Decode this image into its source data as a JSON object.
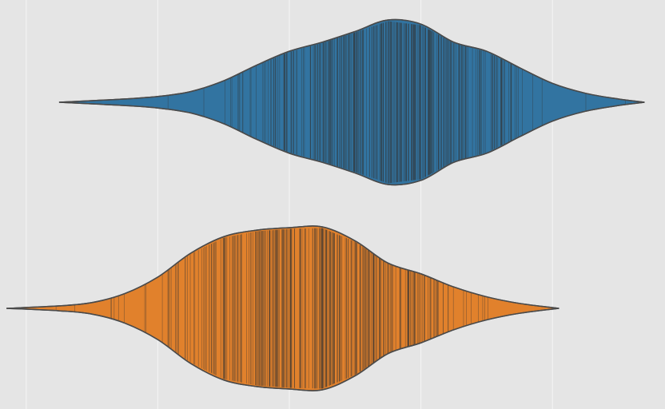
{
  "chart_data": {
    "type": "violin",
    "orientation": "horizontal",
    "title": "",
    "xlabel": "",
    "ylabel": "",
    "grid": true,
    "xlim": [
      -4.2,
      4.65
    ],
    "x_gridlines": [
      -4,
      -2,
      0,
      2,
      4
    ],
    "series": [
      {
        "color": "#3274a1",
        "range": [
          -3.5,
          5.4
        ],
        "median": 1.6,
        "kde": [
          [
            -3.5,
            0.0
          ],
          [
            -3.0,
            0.02
          ],
          [
            -2.5,
            0.04
          ],
          [
            -2.0,
            0.07
          ],
          [
            -1.5,
            0.13
          ],
          [
            -1.0,
            0.26
          ],
          [
            -0.5,
            0.45
          ],
          [
            0.0,
            0.62
          ],
          [
            0.5,
            0.73
          ],
          [
            1.0,
            0.86
          ],
          [
            1.5,
            1.0
          ],
          [
            2.0,
            0.95
          ],
          [
            2.5,
            0.73
          ],
          [
            3.0,
            0.62
          ],
          [
            3.5,
            0.42
          ],
          [
            4.0,
            0.23
          ],
          [
            4.5,
            0.11
          ],
          [
            5.0,
            0.04
          ],
          [
            5.4,
            0.0
          ]
        ],
        "observations": {
          "count": 300,
          "mean": 1.5,
          "sd": 1.3
        }
      },
      {
        "color": "#e1812c",
        "range": [
          -4.3,
          4.1
        ],
        "median": 0.4,
        "kde": [
          [
            -4.3,
            0.0
          ],
          [
            -3.5,
            0.03
          ],
          [
            -3.0,
            0.07
          ],
          [
            -2.5,
            0.18
          ],
          [
            -2.0,
            0.38
          ],
          [
            -1.5,
            0.67
          ],
          [
            -1.0,
            0.87
          ],
          [
            -0.5,
            0.95
          ],
          [
            0.0,
            0.98
          ],
          [
            0.5,
            0.99
          ],
          [
            1.0,
            0.82
          ],
          [
            1.5,
            0.55
          ],
          [
            2.0,
            0.42
          ],
          [
            2.5,
            0.26
          ],
          [
            3.0,
            0.14
          ],
          [
            3.5,
            0.06
          ],
          [
            4.1,
            0.0
          ]
        ],
        "observations": {
          "count": 300,
          "mean": 0.3,
          "sd": 1.2
        }
      }
    ]
  }
}
